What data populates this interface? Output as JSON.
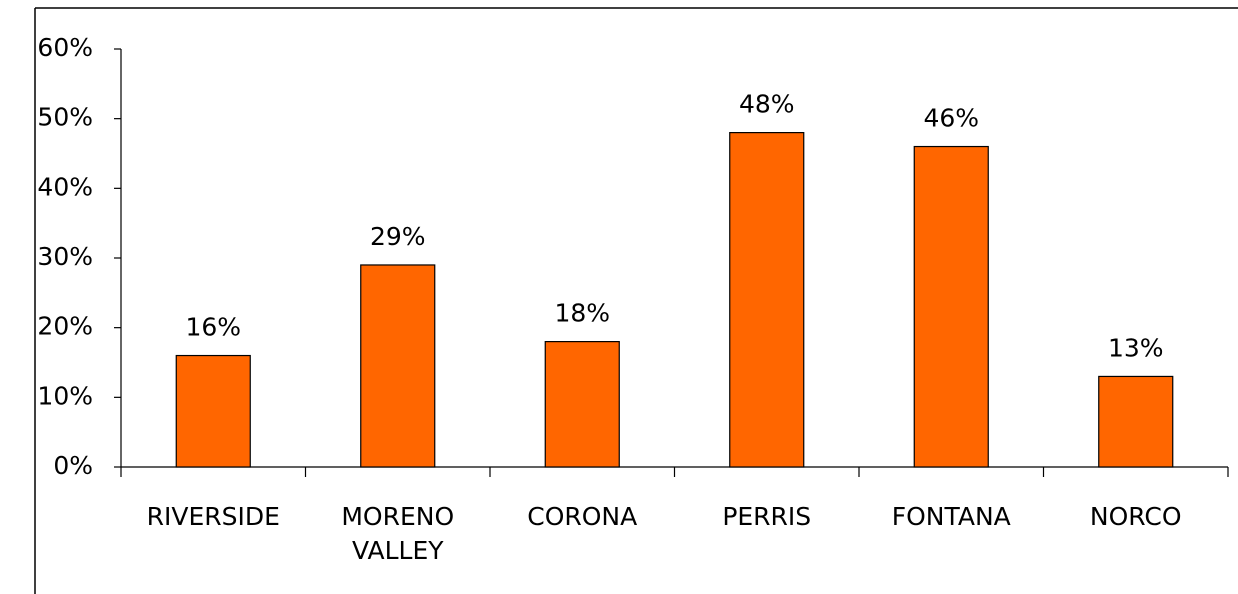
{
  "chart_data": {
    "type": "bar",
    "categories": [
      "RIVERSIDE",
      "MORENO VALLEY",
      "CORONA",
      "PERRIS",
      "FONTANA",
      "NORCO"
    ],
    "values": [
      16,
      29,
      18,
      48,
      46,
      13
    ],
    "value_labels": [
      "16%",
      "29%",
      "18%",
      "48%",
      "46%",
      "13%"
    ],
    "color": "#ff6600",
    "ylim": [
      0,
      60
    ],
    "yticks": [
      {
        "value": 0,
        "label": "0%"
      },
      {
        "value": 10,
        "label": "10%"
      },
      {
        "value": 20,
        "label": "20%"
      },
      {
        "value": 30,
        "label": "30%"
      },
      {
        "value": 40,
        "label": "40%"
      },
      {
        "value": 50,
        "label": "50%"
      },
      {
        "value": 60,
        "label": "60%"
      }
    ],
    "grid": false
  }
}
